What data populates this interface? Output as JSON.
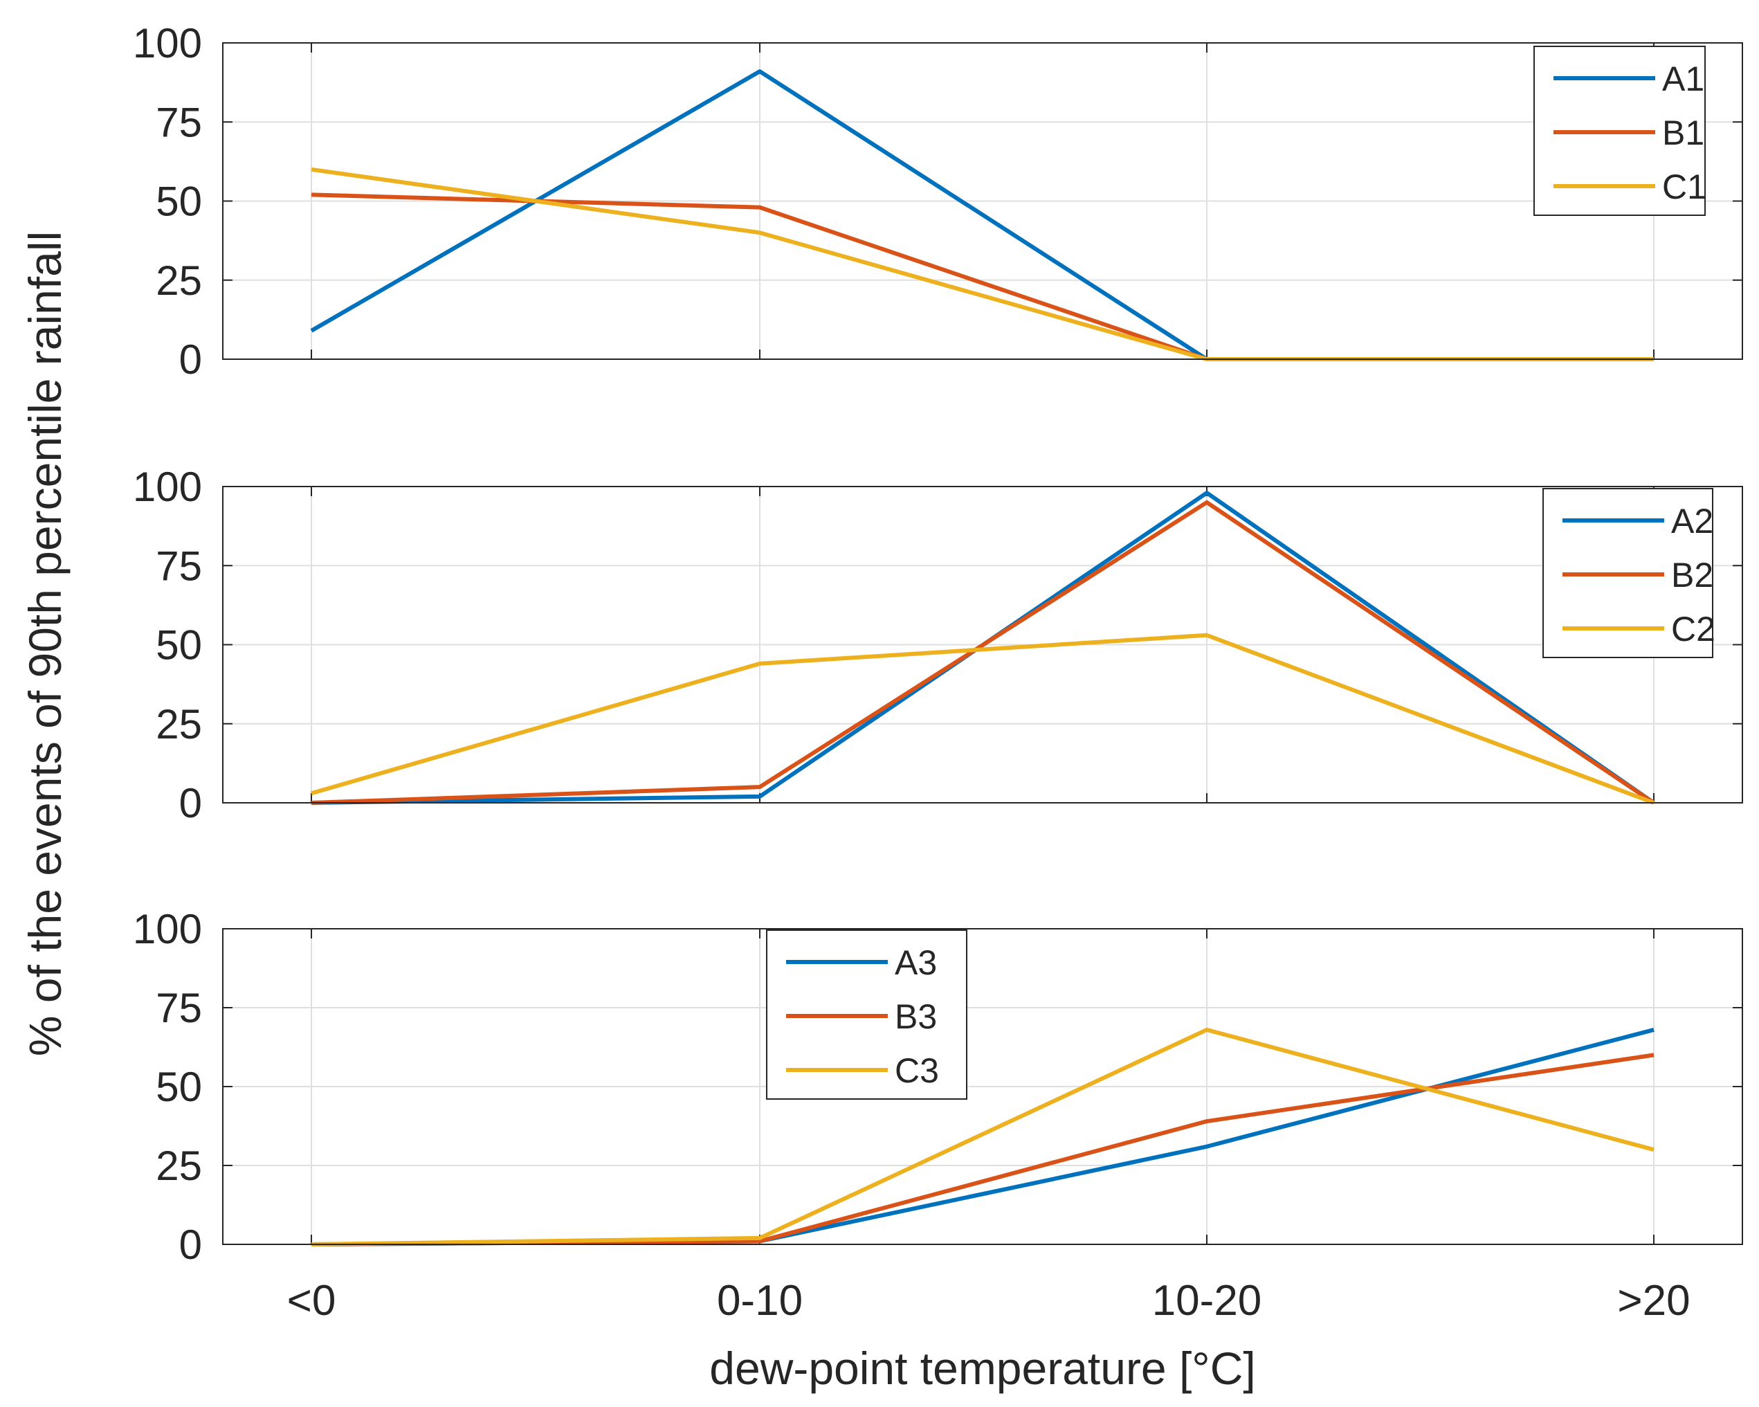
{
  "chart_data": [
    {
      "type": "line",
      "categories": [
        "<0",
        "0-10",
        "10-20",
        ">20"
      ],
      "ylim": [
        0,
        100
      ],
      "yticks": [
        0,
        25,
        50,
        75,
        100
      ],
      "grid": true,
      "legend_position": "top-right",
      "series": [
        {
          "name": "A1",
          "color": "#0072BD",
          "values": [
            9,
            91,
            0,
            0
          ]
        },
        {
          "name": "B1",
          "color": "#D95319",
          "values": [
            52,
            48,
            0,
            0
          ]
        },
        {
          "name": "C1",
          "color": "#EDB120",
          "values": [
            60,
            40,
            0,
            0
          ]
        }
      ]
    },
    {
      "type": "line",
      "categories": [
        "<0",
        "0-10",
        "10-20",
        ">20"
      ],
      "ylim": [
        0,
        100
      ],
      "yticks": [
        0,
        25,
        50,
        75,
        100
      ],
      "grid": true,
      "legend_position": "top-right",
      "series": [
        {
          "name": "A2",
          "color": "#0072BD",
          "values": [
            0,
            2,
            98,
            0
          ]
        },
        {
          "name": "B2",
          "color": "#D95319",
          "values": [
            0,
            5,
            95,
            0
          ]
        },
        {
          "name": "C2",
          "color": "#EDB120",
          "values": [
            3,
            44,
            53,
            0
          ]
        }
      ]
    },
    {
      "type": "line",
      "categories": [
        "<0",
        "0-10",
        "10-20",
        ">20"
      ],
      "ylim": [
        0,
        100
      ],
      "yticks": [
        0,
        25,
        50,
        75,
        100
      ],
      "grid": true,
      "legend_position": "top-center",
      "series": [
        {
          "name": "A3",
          "color": "#0072BD",
          "values": [
            0,
            1,
            31,
            68
          ]
        },
        {
          "name": "B3",
          "color": "#D95319",
          "values": [
            0,
            1,
            39,
            60
          ]
        },
        {
          "name": "C3",
          "color": "#EDB120",
          "values": [
            0,
            2,
            68,
            30
          ]
        }
      ]
    }
  ],
  "xlabel": "dew-point temperature [°C]",
  "ylabel": "% of the events of 90th percentile rainfall"
}
